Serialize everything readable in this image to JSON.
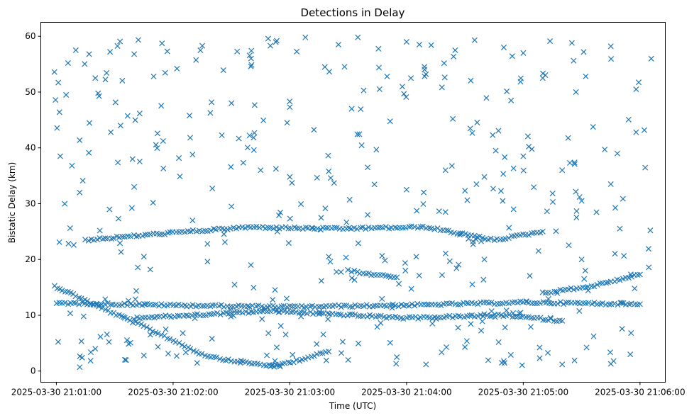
{
  "chart_data": {
    "type": "scatter",
    "title": "Detections in Delay",
    "xlabel": "Time (UTC)",
    "ylabel": "Bistatic Delay (km)",
    "marker": "x",
    "color": "#1f77b4",
    "grid": false,
    "x_axis": {
      "unit": "time",
      "range": [
        "2025-03-30 21:00:52",
        "2025-03-30 21:06:13"
      ],
      "ticks": [
        "2025-03-30 21:01:00",
        "2025-03-30 21:02:00",
        "2025-03-30 21:03:00",
        "2025-03-30 21:04:00",
        "2025-03-30 21:05:00",
        "2025-03-30 21:06:00"
      ]
    },
    "y_axis": {
      "range": [
        -2,
        62.5
      ],
      "ticks": [
        0,
        10,
        20,
        30,
        40,
        50,
        60
      ]
    },
    "tracks": [
      {
        "description": "descending track",
        "points": [
          [
            "2025-03-30 21:00:59",
            15.2
          ],
          [
            "2025-03-30 21:01:10",
            13.5
          ],
          [
            "2025-03-30 21:01:25",
            11.0
          ],
          [
            "2025-03-30 21:01:45",
            8.0
          ],
          [
            "2025-03-30 21:02:00",
            5.5
          ],
          [
            "2025-03-30 21:02:15",
            3.0
          ],
          [
            "2025-03-30 21:02:30",
            1.8
          ],
          [
            "2025-03-30 21:02:45",
            1.2
          ],
          [
            "2025-03-30 21:02:55",
            0.8
          ]
        ]
      },
      {
        "description": "ascending track",
        "points": [
          [
            "2025-03-30 21:02:50",
            0.8
          ],
          [
            "2025-03-30 21:03:05",
            2.0
          ],
          [
            "2025-03-30 21:03:20",
            3.5
          ]
        ]
      },
      {
        "description": "constant track near 12 km",
        "points": [
          [
            "2025-03-30 21:01:00",
            12.2
          ],
          [
            "2025-03-30 21:02:00",
            11.8
          ],
          [
            "2025-03-30 21:03:00",
            11.5
          ],
          [
            "2025-03-30 21:04:00",
            11.8
          ],
          [
            "2025-03-30 21:05:00",
            12.3
          ],
          [
            "2025-03-30 21:06:00",
            12.0
          ]
        ]
      },
      {
        "description": "track near 24-26 km",
        "points": [
          [
            "2025-03-30 21:01:15",
            23.5
          ],
          [
            "2025-03-30 21:02:00",
            24.8
          ],
          [
            "2025-03-30 21:02:40",
            25.8
          ],
          [
            "2025-03-30 21:03:20",
            25.5
          ],
          [
            "2025-03-30 21:04:10",
            25.8
          ],
          [
            "2025-03-30 21:04:45",
            23.5
          ],
          [
            "2025-03-30 21:05:10",
            25.0
          ]
        ]
      },
      {
        "description": "rising track 14 to 17 km",
        "points": [
          [
            "2025-03-30 21:05:10",
            14.0
          ],
          [
            "2025-03-30 21:05:35",
            15.2
          ],
          [
            "2025-03-30 21:06:00",
            17.3
          ]
        ]
      },
      {
        "description": "track near 9-10 km",
        "points": [
          [
            "2025-03-30 21:01:40",
            9.5
          ],
          [
            "2025-03-30 21:02:20",
            10.2
          ],
          [
            "2025-03-30 21:02:50",
            10.8
          ],
          [
            "2025-03-30 21:04:00",
            9.5
          ],
          [
            "2025-03-30 21:04:50",
            10.0
          ],
          [
            "2025-03-30 21:05:20",
            9.0
          ]
        ]
      },
      {
        "description": "track near 18 km",
        "points": [
          [
            "2025-03-30 21:03:30",
            18.0
          ],
          [
            "2025-03-30 21:03:45",
            17.2
          ],
          [
            "2025-03-30 21:03:55",
            16.8
          ]
        ]
      }
    ],
    "scattered_points_approx": [
      [
        "2025-03-30 21:00:59",
        53.6
      ],
      [
        "2025-03-30 21:01:01",
        51.7
      ],
      [
        "2025-03-30 21:01:06",
        55.2
      ],
      [
        "2025-03-30 21:01:10",
        57.5
      ],
      [
        "2025-03-30 21:01:20",
        52.5
      ],
      [
        "2025-03-30 21:01:28",
        42.8
      ],
      [
        "2025-03-30 21:01:33",
        44.0
      ],
      [
        "2025-03-30 21:01:40",
        56.8
      ],
      [
        "2025-03-30 21:01:50",
        52.8
      ],
      [
        "2025-03-30 21:01:57",
        57.3
      ],
      [
        "2025-03-30 21:02:02",
        54.2
      ],
      [
        "2025-03-30 21:02:15",
        58.3
      ],
      [
        "2025-03-30 21:02:30",
        48.0
      ],
      [
        "2025-03-30 21:02:40",
        54.6
      ],
      [
        "2025-03-30 21:02:50",
        58.3
      ],
      [
        "2025-03-30 21:03:00",
        47.3
      ],
      [
        "2025-03-30 21:03:08",
        59.8
      ],
      [
        "2025-03-30 21:03:18",
        54.5
      ],
      [
        "2025-03-30 21:03:25",
        58.5
      ],
      [
        "2025-03-30 21:03:35",
        59.8
      ],
      [
        "2025-03-30 21:03:50",
        52.8
      ],
      [
        "2025-03-30 21:04:00",
        59.0
      ],
      [
        "2025-03-30 21:04:10",
        53.2
      ],
      [
        "2025-03-30 21:04:25",
        57.5
      ],
      [
        "2025-03-30 21:04:35",
        59.3
      ],
      [
        "2025-03-30 21:04:50",
        58.0
      ],
      [
        "2025-03-30 21:05:00",
        57.0
      ],
      [
        "2025-03-30 21:05:10",
        52.5
      ],
      [
        "2025-03-30 21:05:25",
        58.8
      ],
      [
        "2025-03-30 21:05:45",
        58.2
      ],
      [
        "2025-03-30 21:05:58",
        50.5
      ],
      [
        "2025-03-30 21:01:02",
        38.5
      ],
      [
        "2025-03-30 21:01:08",
        36.8
      ],
      [
        "2025-03-30 21:01:12",
        32.0
      ],
      [
        "2025-03-30 21:01:40",
        33.0
      ],
      [
        "2025-03-30 21:01:55",
        36.3
      ],
      [
        "2025-03-30 21:02:10",
        38.8
      ],
      [
        "2025-03-30 21:02:30",
        29.5
      ],
      [
        "2025-03-30 21:02:45",
        36.0
      ],
      [
        "2025-03-30 21:03:00",
        34.8
      ],
      [
        "2025-03-30 21:03:20",
        35.8
      ],
      [
        "2025-03-30 21:03:40",
        36.5
      ],
      [
        "2025-03-30 21:04:00",
        32.5
      ],
      [
        "2025-03-30 21:04:20",
        36.0
      ],
      [
        "2025-03-30 21:04:40",
        34.8
      ],
      [
        "2025-03-30 21:05:00",
        38.5
      ],
      [
        "2025-03-30 21:05:20",
        36.0
      ],
      [
        "2025-03-30 21:05:45",
        33.5
      ],
      [
        "2025-03-30 21:05:58",
        42.8
      ],
      [
        "2025-03-30 21:01:12",
        0.7
      ],
      [
        "2025-03-30 21:01:20",
        4.0
      ],
      [
        "2025-03-30 21:01:45",
        2.8
      ],
      [
        "2025-03-30 21:02:05",
        6.8
      ],
      [
        "2025-03-30 21:02:20",
        5.8
      ],
      [
        "2025-03-30 21:03:30",
        2.0
      ],
      [
        "2025-03-30 21:03:55",
        2.5
      ],
      [
        "2025-03-30 21:04:10",
        1.2
      ],
      [
        "2025-03-30 21:04:30",
        4.3
      ],
      [
        "2025-03-30 21:04:50",
        1.8
      ],
      [
        "2025-03-30 21:05:20",
        1.2
      ],
      [
        "2025-03-30 21:05:45",
        1.3
      ],
      [
        "2025-03-30 21:05:55",
        3.0
      ],
      [
        "2025-03-30 21:02:40",
        19.0
      ],
      [
        "2025-03-30 21:03:20",
        20.5
      ],
      [
        "2025-03-30 21:04:05",
        20.5
      ],
      [
        "2025-03-30 21:04:40",
        20.0
      ],
      [
        "2025-03-30 21:05:30",
        20.0
      ],
      [
        "2025-03-30 21:01:45",
        20.5
      ],
      [
        "2025-03-30 21:02:10",
        27.0
      ],
      [
        "2025-03-30 21:03:40",
        28.0
      ],
      [
        "2025-03-30 21:04:20",
        28.5
      ],
      [
        "2025-03-30 21:04:55",
        29.0
      ],
      [
        "2025-03-30 21:05:30",
        30.5
      ]
    ]
  }
}
